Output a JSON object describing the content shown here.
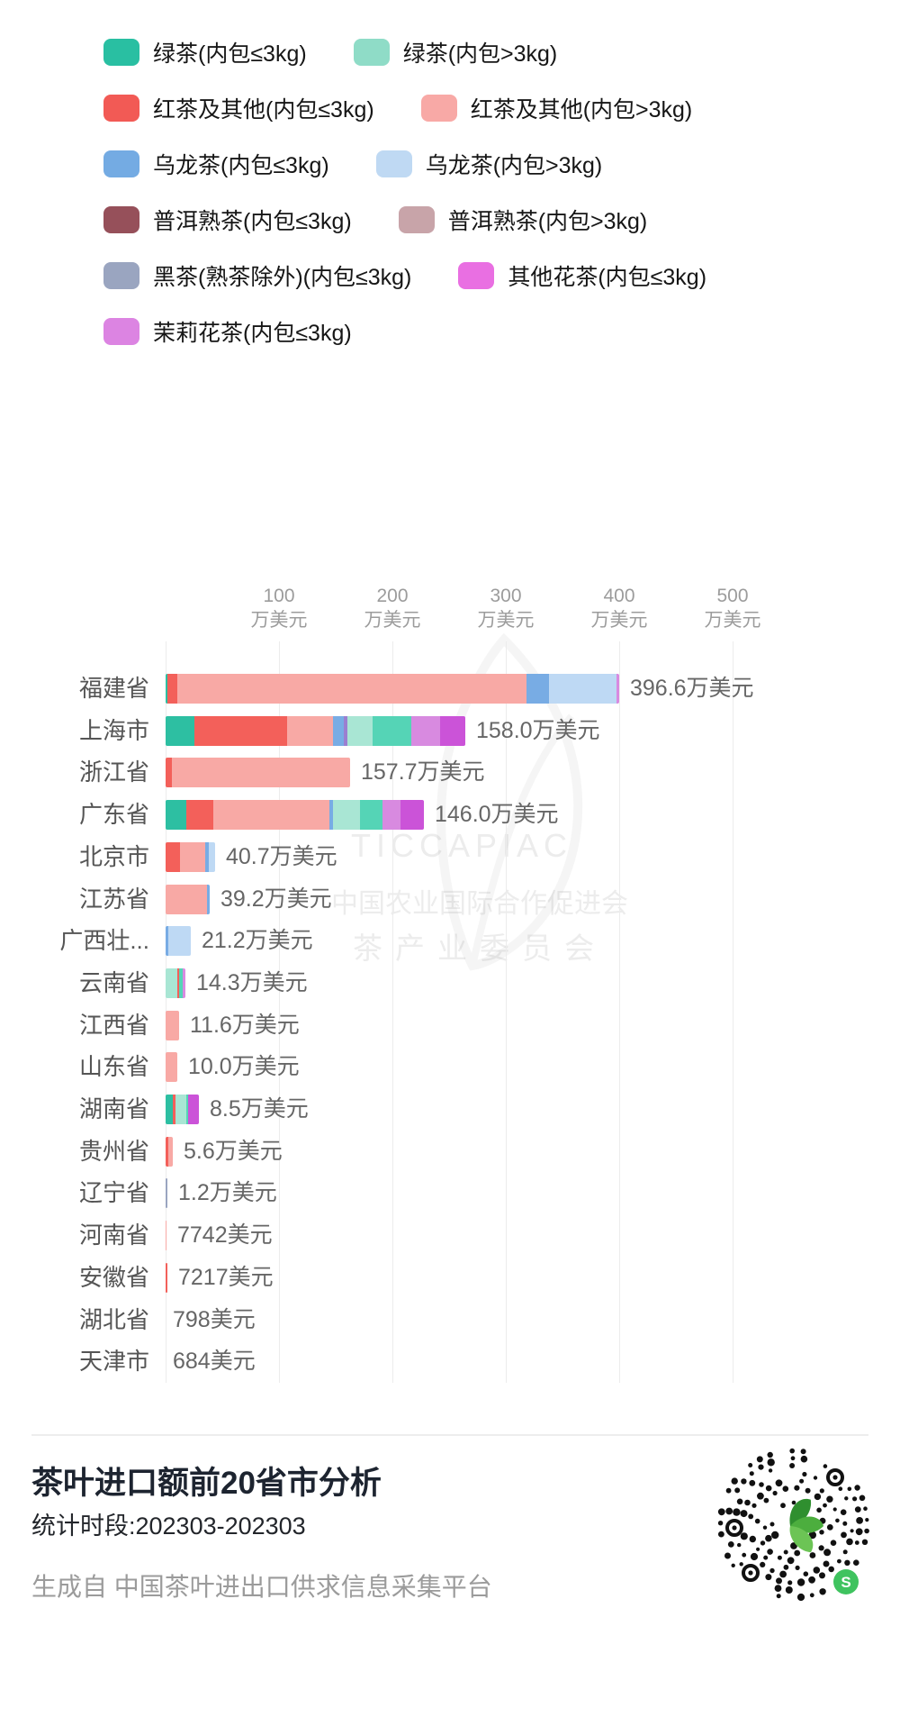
{
  "colors": {
    "teal": "#2dbfa2",
    "mint": "#a9e6d4",
    "turq": "#55d4b6",
    "red": "#f3605a",
    "pink": "#f8a9a5",
    "blue": "#78ace4",
    "lightblue": "#bed9f4",
    "violet": "#9b7fd0",
    "orchid": "#d88ae0",
    "magenta": "#cb53d8",
    "grayblue": "#9aa5c0",
    "maroon": "#96505a",
    "dustypink": "#c8a4a9",
    "qr_green": "#3fae3f",
    "qr_badge_green": "#3fc35f",
    "qr_dot": "#111111"
  },
  "legend": {
    "rows": [
      [
        {
          "label": "绿茶(内包≤3kg)",
          "color": "#29bfa2"
        },
        {
          "label": "绿茶(内包>3kg)",
          "color": "#8fdcc7"
        }
      ],
      [
        {
          "label": "红茶及其他(内包≤3kg)",
          "color": "#f25a55"
        },
        {
          "label": "红茶及其他(内包>3kg)",
          "color": "#f8a9a6"
        }
      ],
      [
        {
          "label": "乌龙茶(内包≤3kg)",
          "color": "#74abe3"
        },
        {
          "label": "乌龙茶(内包>3kg)",
          "color": "#bfd9f3"
        }
      ],
      [
        {
          "label": "普洱熟茶(内包≤3kg)",
          "color": "#96505a"
        },
        {
          "label": "普洱熟茶(内包>3kg)",
          "color": "#c8a4a9"
        }
      ],
      [
        {
          "label": "黑茶(熟茶除外)(内包≤3kg)",
          "color": "#9aa5c0"
        },
        {
          "label": "其他花茶(内包≤3kg)",
          "color": "#e96fe2"
        }
      ],
      [
        {
          "label": "茉莉花茶(内包≤3kg)",
          "color": "#dc84e2"
        }
      ]
    ]
  },
  "chart_data": {
    "type": "bar",
    "orientation": "horizontal",
    "stacked": true,
    "unit": "万美元",
    "xlim": [
      0,
      560
    ],
    "grid": true,
    "x_ticks": [
      {
        "value": "100",
        "unit": "万美元"
      },
      {
        "value": "200",
        "unit": "万美元"
      },
      {
        "value": "300",
        "unit": "万美元"
      },
      {
        "value": "400",
        "unit": "万美元"
      },
      {
        "value": "500",
        "unit": "万美元"
      }
    ],
    "series_legend": [
      "绿茶(内包≤3kg)",
      "绿茶(内包>3kg)",
      "红茶及其他(内包≤3kg)",
      "红茶及其他(内包>3kg)",
      "乌龙茶(内包≤3kg)",
      "乌龙茶(内包>3kg)",
      "普洱熟茶(内包≤3kg)",
      "普洱熟茶(内包>3kg)",
      "黑茶(熟茶除外)(内包≤3kg)",
      "其他花茶(内包≤3kg)",
      "茉莉花茶(内包≤3kg)"
    ],
    "categories": [
      "福建省",
      "上海市",
      "浙江省",
      "广东省",
      "北京市",
      "江苏省",
      "广西壮...",
      "云南省",
      "江西省",
      "山东省",
      "湖南省",
      "贵州省",
      "辽宁省",
      "河南省",
      "安徽省",
      "湖北省",
      "天津市"
    ],
    "values_wan": [
      396.6,
      158.0,
      157.7,
      146.0,
      40.7,
      39.2,
      21.2,
      14.3,
      11.6,
      10.0,
      8.5,
      5.6,
      1.2,
      0.7742,
      0.7217,
      0.0798,
      0.0684
    ],
    "rows": [
      {
        "province": "福建省",
        "value_label": "396.6万美元",
        "total_wan": 396.6,
        "segments": [
          [
            "teal",
            2
          ],
          [
            "red",
            11
          ],
          [
            "pink",
            388
          ],
          [
            "blue",
            25
          ],
          [
            "lightblue",
            75
          ],
          [
            "orchid",
            3
          ]
        ]
      },
      {
        "province": "上海市",
        "value_label": "158.0万美元",
        "total_wan": 158.0,
        "segments": [
          [
            "teal",
            32
          ],
          [
            "red",
            103
          ],
          [
            "pink",
            51
          ],
          [
            "blue",
            12
          ],
          [
            "violet",
            4
          ],
          [
            "mint",
            28
          ],
          [
            "turq",
            43
          ],
          [
            "orchid",
            32
          ],
          [
            "magenta",
            28
          ]
        ]
      },
      {
        "province": "浙江省",
        "value_label": "157.7万美元",
        "total_wan": 157.7,
        "segments": [
          [
            "red",
            7
          ],
          [
            "pink",
            198
          ]
        ]
      },
      {
        "province": "广东省",
        "value_label": "146.0万美元",
        "total_wan": 146.0,
        "segments": [
          [
            "teal",
            23
          ],
          [
            "red",
            30
          ],
          [
            "pink",
            129
          ],
          [
            "blue",
            4
          ],
          [
            "mint",
            30
          ],
          [
            "turq",
            25
          ],
          [
            "orchid",
            20
          ],
          [
            "magenta",
            26
          ]
        ]
      },
      {
        "province": "北京市",
        "value_label": "40.7万美元",
        "total_wan": 40.7,
        "segments": [
          [
            "red",
            16
          ],
          [
            "pink",
            28
          ],
          [
            "blue",
            4
          ],
          [
            "lightblue",
            7
          ]
        ]
      },
      {
        "province": "江苏省",
        "value_label": "39.2万美元",
        "total_wan": 39.2,
        "segments": [
          [
            "pink",
            46
          ],
          [
            "blue",
            3
          ]
        ]
      },
      {
        "province": "广西壮...",
        "value_label": "21.2万美元",
        "total_wan": 21.2,
        "segments": [
          [
            "blue",
            3
          ],
          [
            "lightblue",
            25
          ]
        ]
      },
      {
        "province": "云南省",
        "value_label": "14.3万美元",
        "total_wan": 14.3,
        "segments": [
          [
            "mint",
            13
          ],
          [
            "red",
            2
          ],
          [
            "turq",
            4
          ],
          [
            "orchid",
            3
          ]
        ]
      },
      {
        "province": "江西省",
        "value_label": "11.6万美元",
        "total_wan": 11.6,
        "segments": [
          [
            "pink",
            15
          ]
        ]
      },
      {
        "province": "山东省",
        "value_label": "10.0万美元",
        "total_wan": 10.0,
        "segments": [
          [
            "pink",
            13
          ]
        ]
      },
      {
        "province": "湖南省",
        "value_label": "8.5万美元",
        "total_wan": 8.5,
        "segments": [
          [
            "teal",
            8
          ],
          [
            "red",
            3
          ],
          [
            "mint",
            12
          ],
          [
            "turq",
            2
          ],
          [
            "magenta",
            12
          ]
        ]
      },
      {
        "province": "贵州省",
        "value_label": "5.6万美元",
        "total_wan": 5.6,
        "segments": [
          [
            "red",
            3
          ],
          [
            "pink",
            5
          ]
        ]
      },
      {
        "province": "辽宁省",
        "value_label": "1.2万美元",
        "total_wan": 1.2,
        "segments": [
          [
            "grayblue",
            2
          ]
        ]
      },
      {
        "province": "河南省",
        "value_label": "7742美元",
        "total_wan": 0.7742,
        "segments": [
          [
            "pink",
            1
          ]
        ]
      },
      {
        "province": "安徽省",
        "value_label": "7217美元",
        "total_wan": 0.7217,
        "segments": [
          [
            "red",
            2
          ]
        ]
      },
      {
        "province": "湖北省",
        "value_label": "798美元",
        "total_wan": 0.0798,
        "segments": []
      },
      {
        "province": "天津市",
        "value_label": "684美元",
        "total_wan": 0.0684,
        "segments": []
      }
    ]
  },
  "watermark": {
    "line1": "TICCAPIAC",
    "line2": "中国农业国际合作促进会",
    "line3": "茶产业委员会"
  },
  "footer": {
    "title": "茶叶进口额前20省市分析",
    "period": "统计时段:202303-202303",
    "source": "生成自 中国茶叶进出口供求信息采集平台",
    "qr_badge_letter": "S"
  }
}
